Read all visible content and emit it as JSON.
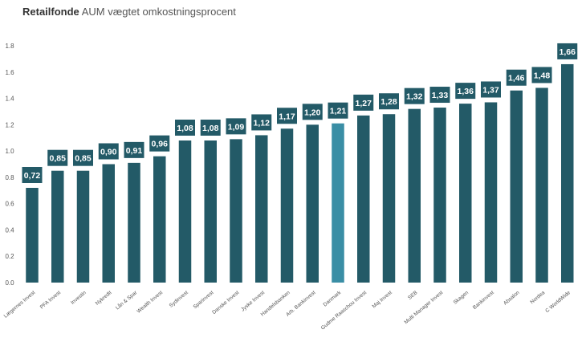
{
  "chart_data": {
    "type": "bar",
    "title_bold": "Retailfonde",
    "title_rest": "AUM vægtet omkostningsprocent",
    "xlabel": "",
    "ylabel": "",
    "ylim": [
      0,
      1.8
    ],
    "yticks": [
      "0.0",
      "0.2",
      "0.4",
      "0.6",
      "0.8",
      "1.0",
      "1.2",
      "1.4",
      "1.6",
      "1.8"
    ],
    "grid": false,
    "legend": "none",
    "categories": [
      "Lægernes Invest",
      "PFA Invest",
      "Investin",
      "Nykredit",
      "Lån & Spar",
      "Wealth Invest",
      "Sydinvest",
      "Sparinvest",
      "Danske Invest",
      "Jyske Invest",
      "Handelsbanken",
      "Arb. Bankinvest",
      "Danmark",
      "Gudme Raaschou Invest",
      "Maj Invest",
      "SEB",
      "Multi Manager Invest",
      "Skagen",
      "Bankinvest",
      "Absalon",
      "Nordea",
      "C WorldWide"
    ],
    "values": [
      0.72,
      0.85,
      0.85,
      0.9,
      0.91,
      0.96,
      1.08,
      1.08,
      1.09,
      1.12,
      1.17,
      1.2,
      1.21,
      1.27,
      1.28,
      1.32,
      1.33,
      1.36,
      1.37,
      1.46,
      1.48,
      1.66
    ],
    "value_labels": [
      "0,72",
      "0,85",
      "0,85",
      "0,90",
      "0,91",
      "0,96",
      "1,08",
      "1,08",
      "1,09",
      "1,12",
      "1,17",
      "1,20",
      "1,21",
      "1,27",
      "1,28",
      "1,32",
      "1,33",
      "1,36",
      "1,37",
      "1,46",
      "1,48",
      "1,66"
    ],
    "highlight_category": "Danmark",
    "colors": {
      "bar": "#235a67",
      "highlight": "#3a8ea5",
      "label_box": "#235a67",
      "label_text": "#ffffff",
      "axis_text": "#555555"
    }
  }
}
